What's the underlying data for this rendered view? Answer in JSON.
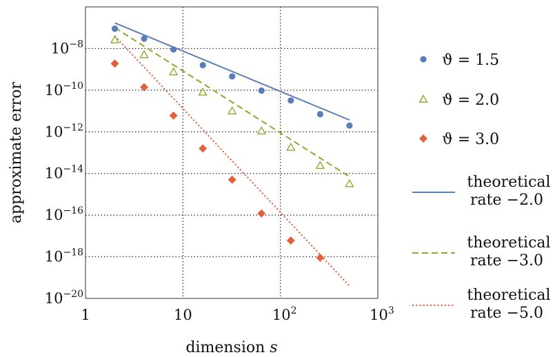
{
  "chart_data": {
    "type": "scatter",
    "xlabel": "dimension s",
    "xlabel_parts": [
      "dimension ",
      "s"
    ],
    "ylabel": "approximate error",
    "xscale": "log",
    "yscale": "log",
    "xlim": [
      1,
      1000
    ],
    "ylim": [
      1e-20,
      1e-06
    ],
    "grid": "dotted",
    "legend_position": "right",
    "x_ticks": [
      {
        "value": 1,
        "base": "1",
        "exp": ""
      },
      {
        "value": 10,
        "base": "10",
        "exp": ""
      },
      {
        "value": 100,
        "base": "10",
        "exp": "2"
      },
      {
        "value": 1000,
        "base": "10",
        "exp": "3"
      }
    ],
    "y_ticks": [
      {
        "value": 1e-08,
        "base": "10",
        "exp": "−8"
      },
      {
        "value": 1e-10,
        "base": "10",
        "exp": "−10"
      },
      {
        "value": 1e-12,
        "base": "10",
        "exp": "−12"
      },
      {
        "value": 1e-14,
        "base": "10",
        "exp": "−14"
      },
      {
        "value": 1e-16,
        "base": "10",
        "exp": "−16"
      },
      {
        "value": 1e-18,
        "base": "10",
        "exp": "−18"
      },
      {
        "value": 1e-20,
        "base": "10",
        "exp": "−20"
      }
    ],
    "series": [
      {
        "name": "ϑ = 1.5",
        "marker": "circle",
        "color": "#5b7db7",
        "x": [
          2,
          4,
          8,
          16,
          32,
          64,
          128,
          256,
          512
        ],
        "y": [
          9e-08,
          3e-08,
          9e-09,
          1.6e-09,
          4.6e-10,
          9.5e-11,
          3.2e-11,
          7e-12,
          2e-12
        ]
      },
      {
        "name": "ϑ = 2.0",
        "marker": "triangle",
        "color": "#8bab2e",
        "x": [
          2,
          4,
          8,
          16,
          32,
          64,
          128,
          256,
          512
        ],
        "y": [
          2.6e-08,
          5e-09,
          7.5e-10,
          8e-11,
          1e-11,
          1.1e-12,
          1.8e-13,
          2.4e-14,
          3.2e-15
        ]
      },
      {
        "name": "ϑ = 3.0",
        "marker": "diamond",
        "color": "#e2603a",
        "x": [
          2,
          4,
          8,
          16,
          32,
          64,
          128,
          256
        ],
        "y": [
          1.9e-09,
          1.4e-10,
          6e-12,
          1.6e-13,
          5e-15,
          1.2e-16,
          6e-18,
          9e-19
        ]
      }
    ],
    "reference_lines": [
      {
        "label_line1": "theoretical",
        "label_line2": "rate −2.0",
        "style": "solid",
        "color": "#5b7db7",
        "x": [
          2,
          512
        ],
        "y": [
          1.7e-07,
          3.7e-12
        ]
      },
      {
        "label_line1": "theoretical",
        "label_line2": "rate −3.0",
        "style": "dashed",
        "color": "#8bab2e",
        "x": [
          2,
          512
        ],
        "y": [
          1e-07,
          7e-15
        ]
      },
      {
        "label_line1": "theoretical",
        "label_line2": "rate −5.0",
        "style": "dotted",
        "color": "#e2603a",
        "x": [
          2,
          512
        ],
        "y": [
          4e-08,
          4e-20
        ]
      }
    ]
  }
}
